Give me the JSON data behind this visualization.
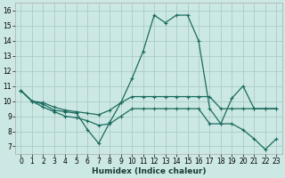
{
  "xlabel": "Humidex (Indice chaleur)",
  "xlim": [
    -0.5,
    23.5
  ],
  "ylim": [
    6.5,
    16.5
  ],
  "yticks": [
    7,
    8,
    9,
    10,
    11,
    12,
    13,
    14,
    15,
    16
  ],
  "xticks": [
    0,
    1,
    2,
    3,
    4,
    5,
    6,
    7,
    8,
    9,
    10,
    11,
    12,
    13,
    14,
    15,
    16,
    17,
    18,
    19,
    20,
    21,
    22,
    23
  ],
  "bg_color": "#cce8e4",
  "grid_color": "#aaccc7",
  "line_color": "#1a6b5e",
  "series1_y": [
    10.7,
    10.0,
    9.8,
    9.4,
    9.3,
    9.2,
    8.1,
    7.2,
    8.6,
    9.9,
    11.5,
    13.3,
    15.7,
    15.2,
    15.7,
    15.7,
    14.0,
    9.5,
    8.5,
    10.2,
    11.0,
    9.5,
    9.5,
    9.5
  ],
  "series2_y": [
    10.7,
    10.0,
    9.9,
    9.6,
    9.4,
    9.3,
    9.2,
    9.1,
    9.4,
    9.9,
    10.3,
    10.3,
    10.3,
    10.3,
    10.3,
    10.3,
    10.3,
    10.3,
    9.5,
    9.5,
    9.5,
    9.5,
    9.5,
    9.5
  ],
  "series3_y": [
    10.7,
    10.0,
    9.6,
    9.3,
    9.0,
    8.9,
    8.7,
    8.4,
    8.5,
    9.0,
    9.5,
    9.5,
    9.5,
    9.5,
    9.5,
    9.5,
    9.5,
    8.5,
    8.5,
    8.5,
    8.1,
    7.5,
    6.8,
    7.5
  ]
}
